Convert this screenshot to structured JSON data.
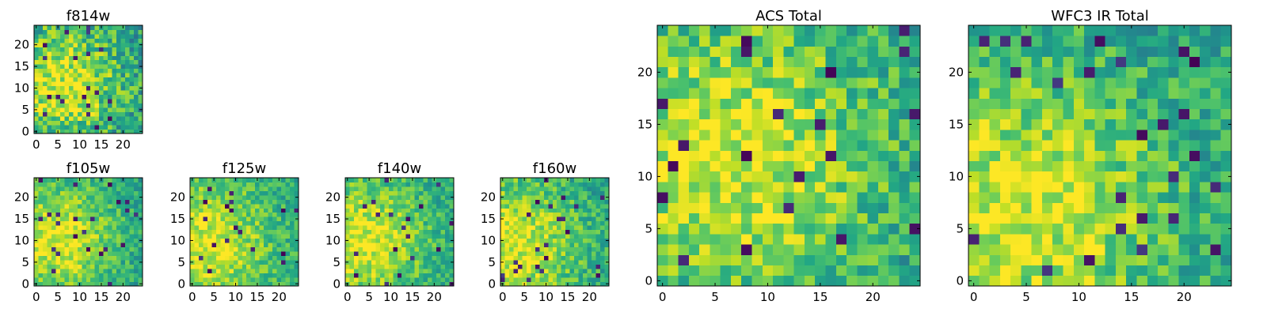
{
  "figure": {
    "description_type": "image grid",
    "colormap": "viridis",
    "value_range": [
      0,
      1
    ]
  },
  "chart_data": [
    {
      "type": "heatmap",
      "id": "f814w",
      "title": "f814w",
      "grid": 25,
      "seed": 11,
      "xticks": [
        0,
        5,
        10,
        15,
        20
      ],
      "yticks": [
        0,
        5,
        10,
        15,
        20
      ],
      "xtick_labels": [
        "0",
        "5",
        "10",
        "15",
        "20"
      ],
      "ytick_labels": [
        "0",
        "5",
        "10",
        "15",
        "20"
      ],
      "hotspot": {
        "cx": 6,
        "cy": 11,
        "r": 9
      },
      "noise": 0.45
    },
    {
      "type": "heatmap",
      "id": "f105w",
      "title": "f105w",
      "grid": 25,
      "seed": 21,
      "xticks": [
        0,
        5,
        10,
        15,
        20
      ],
      "yticks": [
        0,
        5,
        10,
        15,
        20
      ],
      "xtick_labels": [
        "0",
        "5",
        "10",
        "15",
        "20"
      ],
      "ytick_labels": [
        "0",
        "5",
        "10",
        "15",
        "20"
      ],
      "hotspot": {
        "cx": 5,
        "cy": 10,
        "r": 10
      },
      "noise": 0.3
    },
    {
      "type": "heatmap",
      "id": "f125w",
      "title": "f125w",
      "grid": 25,
      "seed": 31,
      "xticks": [
        0,
        5,
        10,
        15,
        20
      ],
      "yticks": [
        0,
        5,
        10,
        15,
        20
      ],
      "xtick_labels": [
        "0",
        "5",
        "10",
        "15",
        "20"
      ],
      "ytick_labels": [
        "0",
        "5",
        "10",
        "15",
        "20"
      ],
      "hotspot": {
        "cx": 3,
        "cy": 9,
        "r": 12
      },
      "noise": 0.3
    },
    {
      "type": "heatmap",
      "id": "f140w",
      "title": "f140w",
      "grid": 25,
      "seed": 41,
      "xticks": [
        0,
        5,
        10,
        15,
        20
      ],
      "yticks": [
        0,
        5,
        10,
        15,
        20
      ],
      "xtick_labels": [
        "0",
        "5",
        "10",
        "15",
        "20"
      ],
      "ytick_labels": [
        "0",
        "5",
        "10",
        "15",
        "20"
      ],
      "hotspot": {
        "cx": 4,
        "cy": 10,
        "r": 11
      },
      "noise": 0.3
    },
    {
      "type": "heatmap",
      "id": "f160w",
      "title": "f160w",
      "grid": 25,
      "seed": 51,
      "xticks": [
        0,
        5,
        10,
        15,
        20
      ],
      "yticks": [
        0,
        5,
        10,
        15,
        20
      ],
      "xtick_labels": [
        "0",
        "5",
        "10",
        "15",
        "20"
      ],
      "ytick_labels": [
        "0",
        "5",
        "10",
        "15",
        "20"
      ],
      "hotspot": {
        "cx": 2,
        "cy": 9,
        "r": 12
      },
      "noise": 0.32
    },
    {
      "type": "heatmap",
      "id": "acs_total",
      "title": "ACS Total",
      "grid": 25,
      "seed": 61,
      "xticks": [
        0,
        5,
        10,
        15,
        20
      ],
      "yticks": [
        0,
        5,
        10,
        15,
        20
      ],
      "xtick_labels": [
        "0",
        "5",
        "10",
        "15",
        "20"
      ],
      "ytick_labels": [
        "0",
        "5",
        "10",
        "15",
        "20"
      ],
      "hotspot": {
        "cx": 7,
        "cy": 12,
        "r": 10
      },
      "noise": 0.38
    },
    {
      "type": "heatmap",
      "id": "wfc3_ir_total",
      "title": "WFC3 IR Total",
      "grid": 25,
      "seed": 71,
      "xticks": [
        0,
        5,
        10,
        15,
        20
      ],
      "yticks": [
        0,
        5,
        10,
        15,
        20
      ],
      "xtick_labels": [
        "0",
        "5",
        "10",
        "15",
        "20"
      ],
      "ytick_labels": [
        "0",
        "5",
        "10",
        "15",
        "20"
      ],
      "hotspot": {
        "cx": 5,
        "cy": 7,
        "r": 10
      },
      "noise": 0.36
    }
  ]
}
